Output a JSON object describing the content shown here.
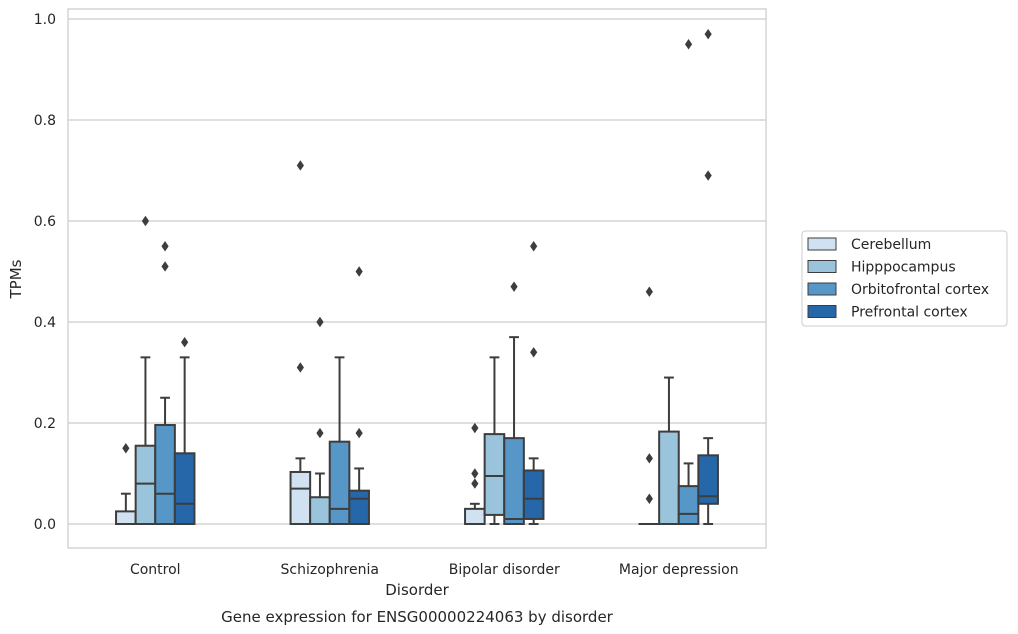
{
  "chart_data": {
    "type": "box",
    "title": "",
    "caption": "Gene expression for ENSG00000224063 by disorder",
    "xlabel": "Disorder",
    "ylabel": "TPMs",
    "ylim": [
      -0.045,
      1.02
    ],
    "yticks": [
      0.0,
      0.2,
      0.4,
      0.6,
      0.8,
      1.0
    ],
    "ytick_labels": [
      "0.0",
      "0.2",
      "0.4",
      "0.6",
      "0.8",
      "1.0"
    ],
    "grid": "horizontal",
    "legend_position": "right",
    "categories": [
      "Control",
      "Schizophrenia",
      "Bipolar disorder",
      "Major depression"
    ],
    "series": [
      {
        "name": "Cerebellum",
        "color": "#d0e2f2",
        "boxes": [
          {
            "whisker_low": 0.0,
            "q1": 0.0,
            "median": 0.0,
            "q3": 0.025,
            "whisker_high": 0.06,
            "outliers": [
              0.15
            ]
          },
          {
            "whisker_low": 0.0,
            "q1": 0.0,
            "median": 0.07,
            "q3": 0.103,
            "whisker_high": 0.13,
            "outliers": [
              0.31,
              0.71
            ]
          },
          {
            "whisker_low": 0.0,
            "q1": 0.0,
            "median": 0.0,
            "q3": 0.03,
            "whisker_high": 0.04,
            "outliers": [
              0.08,
              0.1,
              0.19
            ]
          },
          {
            "whisker_low": 0.0,
            "q1": 0.0,
            "median": 0.0,
            "q3": 0.0,
            "whisker_high": 0.0,
            "outliers": [
              0.05,
              0.13,
              0.46
            ]
          }
        ]
      },
      {
        "name": "Hipppocampus",
        "color": "#9ac3dc",
        "boxes": [
          {
            "whisker_low": 0.0,
            "q1": 0.0,
            "median": 0.08,
            "q3": 0.155,
            "whisker_high": 0.33,
            "outliers": [
              0.6
            ]
          },
          {
            "whisker_low": 0.0,
            "q1": 0.0,
            "median": 0.0,
            "q3": 0.053,
            "whisker_high": 0.1,
            "outliers": [
              0.18,
              0.4
            ]
          },
          {
            "whisker_low": 0.0,
            "q1": 0.018,
            "median": 0.095,
            "q3": 0.178,
            "whisker_high": 0.33,
            "outliers": []
          },
          {
            "whisker_low": 0.0,
            "q1": 0.0,
            "median": 0.0,
            "q3": 0.183,
            "whisker_high": 0.29,
            "outliers": []
          }
        ]
      },
      {
        "name": "Orbitofrontal cortex",
        "color": "#5697c8",
        "boxes": [
          {
            "whisker_low": 0.0,
            "q1": 0.0,
            "median": 0.06,
            "q3": 0.196,
            "whisker_high": 0.25,
            "outliers": [
              0.51,
              0.55
            ]
          },
          {
            "whisker_low": 0.0,
            "q1": 0.0,
            "median": 0.03,
            "q3": 0.163,
            "whisker_high": 0.33,
            "outliers": []
          },
          {
            "whisker_low": 0.0,
            "q1": 0.0,
            "median": 0.01,
            "q3": 0.17,
            "whisker_high": 0.37,
            "outliers": [
              0.47
            ]
          },
          {
            "whisker_low": 0.0,
            "q1": 0.0,
            "median": 0.02,
            "q3": 0.075,
            "whisker_high": 0.12,
            "outliers": [
              0.95
            ]
          }
        ]
      },
      {
        "name": "Prefrontal cortex",
        "color": "#2567a8",
        "boxes": [
          {
            "whisker_low": 0.0,
            "q1": 0.0,
            "median": 0.04,
            "q3": 0.14,
            "whisker_high": 0.33,
            "outliers": [
              0.36
            ]
          },
          {
            "whisker_low": 0.0,
            "q1": 0.0,
            "median": 0.05,
            "q3": 0.066,
            "whisker_high": 0.11,
            "outliers": [
              0.18,
              0.5
            ]
          },
          {
            "whisker_low": 0.0,
            "q1": 0.01,
            "median": 0.05,
            "q3": 0.106,
            "whisker_high": 0.13,
            "outliers": [
              0.34,
              0.55
            ]
          },
          {
            "whisker_low": 0.0,
            "q1": 0.04,
            "median": 0.055,
            "q3": 0.136,
            "whisker_high": 0.17,
            "outliers": [
              0.69,
              0.97
            ]
          }
        ]
      }
    ]
  }
}
